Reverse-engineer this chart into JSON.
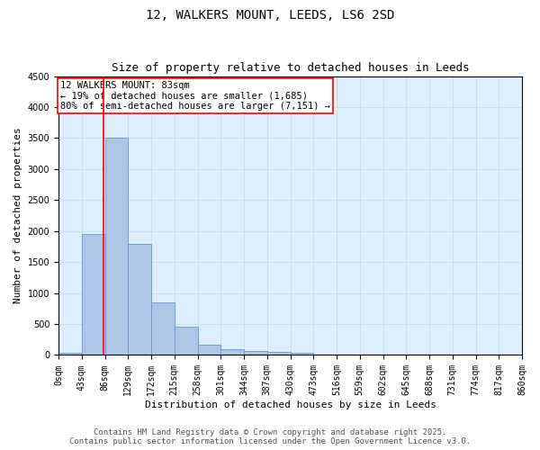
{
  "title": "12, WALKERS MOUNT, LEEDS, LS6 2SD",
  "subtitle": "Size of property relative to detached houses in Leeds",
  "xlabel": "Distribution of detached houses by size in Leeds",
  "ylabel": "Number of detached properties",
  "bin_labels": [
    "0sqm",
    "43sqm",
    "86sqm",
    "129sqm",
    "172sqm",
    "215sqm",
    "258sqm",
    "301sqm",
    "344sqm",
    "387sqm",
    "430sqm",
    "473sqm",
    "516sqm",
    "559sqm",
    "602sqm",
    "645sqm",
    "688sqm",
    "731sqm",
    "774sqm",
    "817sqm",
    "860sqm"
  ],
  "bar_values": [
    40,
    1950,
    3500,
    1800,
    850,
    450,
    160,
    100,
    70,
    50,
    30,
    10,
    0,
    0,
    0,
    0,
    0,
    0,
    0,
    0
  ],
  "bar_color": "#aec6e8",
  "bar_edgecolor": "#5b9bd5",
  "property_line_x": 83,
  "property_line_color": "red",
  "annotation_text": "12 WALKERS MOUNT: 83sqm\n← 19% of detached houses are smaller (1,685)\n80% of semi-detached houses are larger (7,151) →",
  "annotation_box_color": "red",
  "annotation_box_facecolor": "white",
  "ylim": [
    0,
    4500
  ],
  "grid_color": "#d0dce8",
  "background_color": "#ddeeff",
  "footer_line1": "Contains HM Land Registry data © Crown copyright and database right 2025.",
  "footer_line2": "Contains public sector information licensed under the Open Government Licence v3.0.",
  "title_fontsize": 10,
  "subtitle_fontsize": 9,
  "axis_label_fontsize": 8,
  "tick_fontsize": 7,
  "footer_fontsize": 6.5,
  "annotation_fontsize": 7.5
}
